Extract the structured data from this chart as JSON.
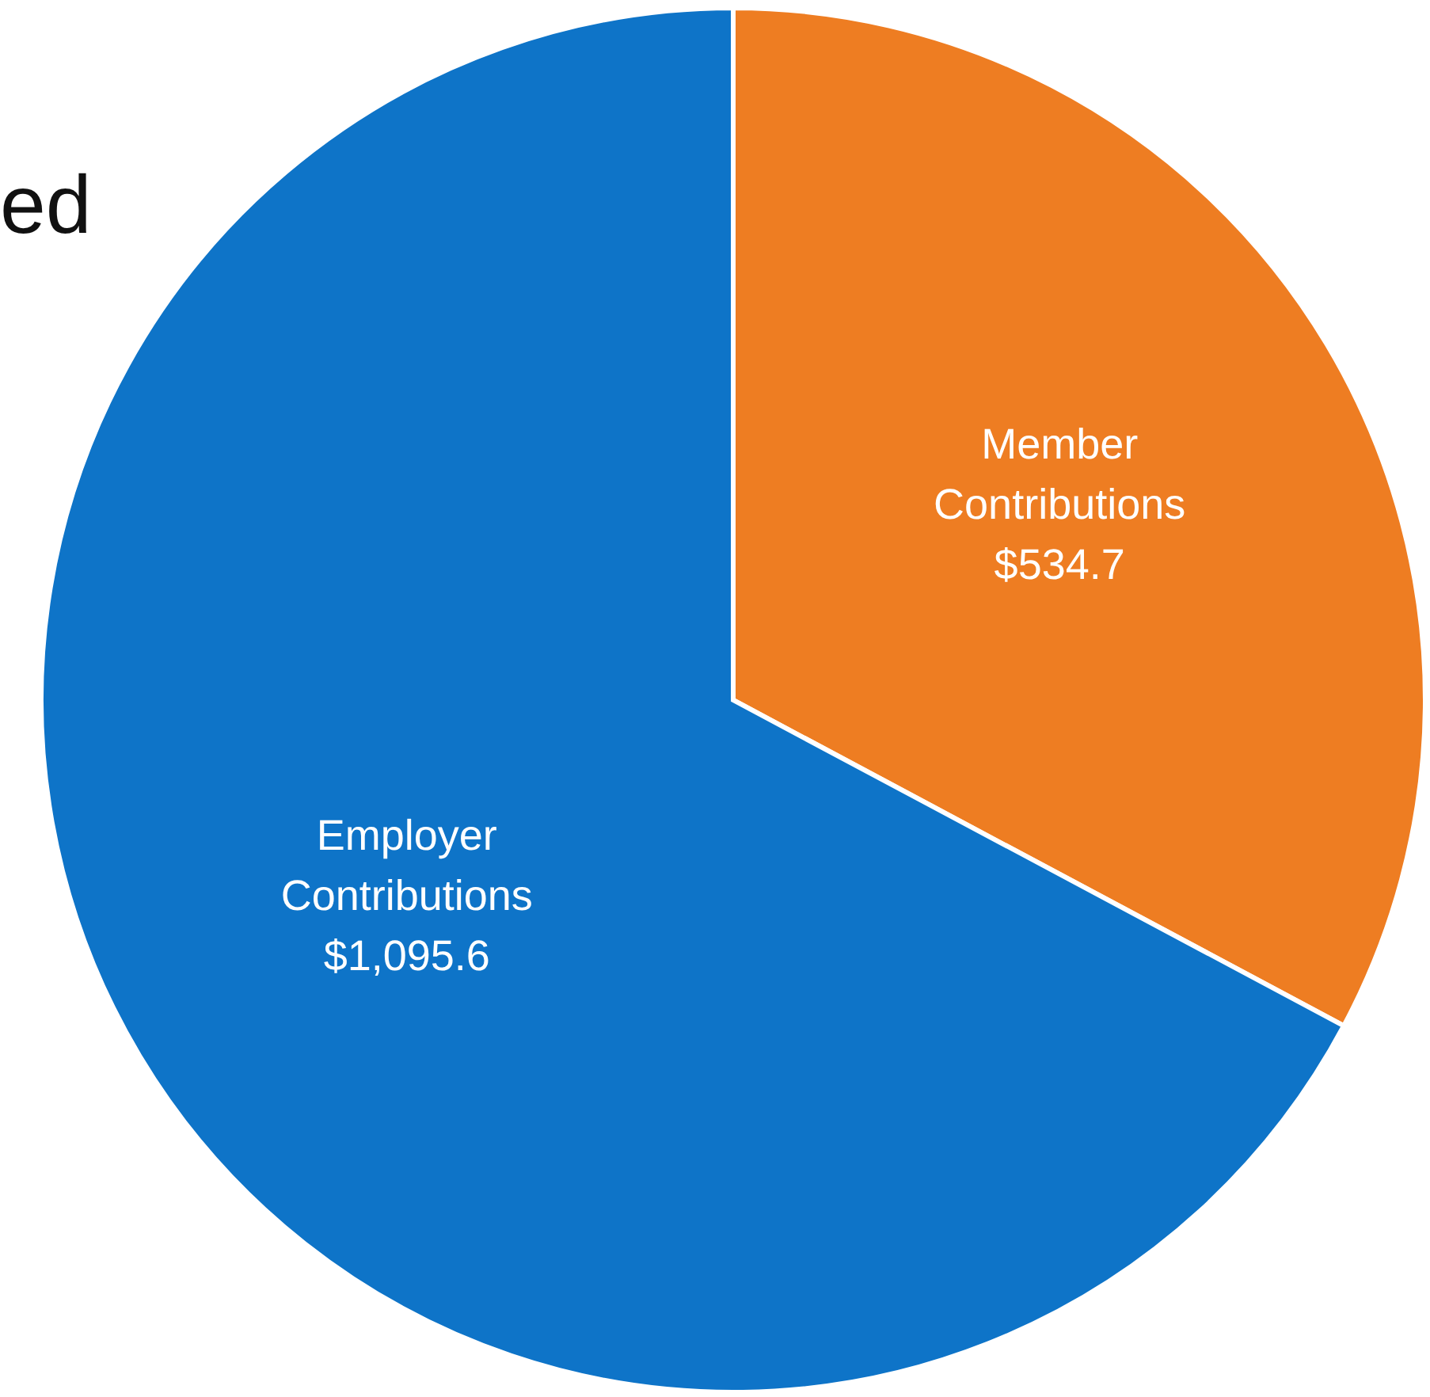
{
  "chart_data": {
    "type": "pie",
    "categories": [
      "Member Contributions",
      "Employer Contributions"
    ],
    "values": [
      534.7,
      1095.6
    ],
    "colors": [
      "#ee7d22",
      "#0e74c8"
    ],
    "value_labels": [
      "$534.7",
      "$1,095.6"
    ],
    "annotations": [
      "ed"
    ]
  }
}
